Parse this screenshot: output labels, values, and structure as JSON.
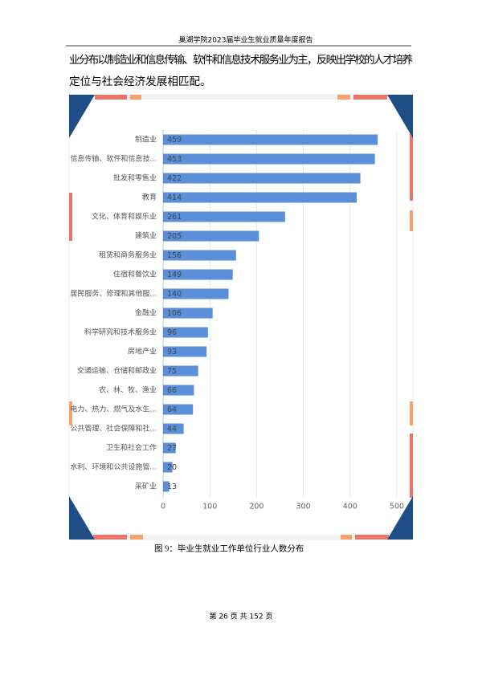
{
  "header": {
    "title": "巢湖学院2023届毕业生就业质量年度报告"
  },
  "paragraph": [
    "业分布以制造业和信息传输、软件和信息技术服务业为主，反映出学校的人才培养",
    "定位与社会经济发展相匹配。"
  ],
  "chart_data": {
    "type": "bar",
    "orientation": "horizontal",
    "categories": [
      "制造业",
      "信息传输、软件和信息技...",
      "批发和零售业",
      "教育",
      "文化、体育和娱乐业",
      "建筑业",
      "租赁和商务服务业",
      "住宿和餐饮业",
      "居民服务、修理和其他服...",
      "金融业",
      "科学研究和技术服务业",
      "房地产业",
      "交通运输、仓储和邮政业",
      "农、林、牧、渔业",
      "电力、热力、燃气及水生...",
      "公共管理、社会保障和社...",
      "卫生和社会工作",
      "水利、环境和公共设施管...",
      "采矿业"
    ],
    "values": [
      459,
      453,
      422,
      414,
      261,
      205,
      156,
      149,
      140,
      106,
      96,
      93,
      75,
      66,
      64,
      44,
      27,
      20,
      13
    ],
    "color": "#5b8fd9",
    "xlim": [
      0,
      500
    ],
    "xticks": [
      0,
      100,
      200,
      300,
      400,
      500
    ],
    "grid": true
  },
  "caption": "图 9：毕业生就业工作单位行业人数分布",
  "footer": "第 26 页 共 152 页"
}
